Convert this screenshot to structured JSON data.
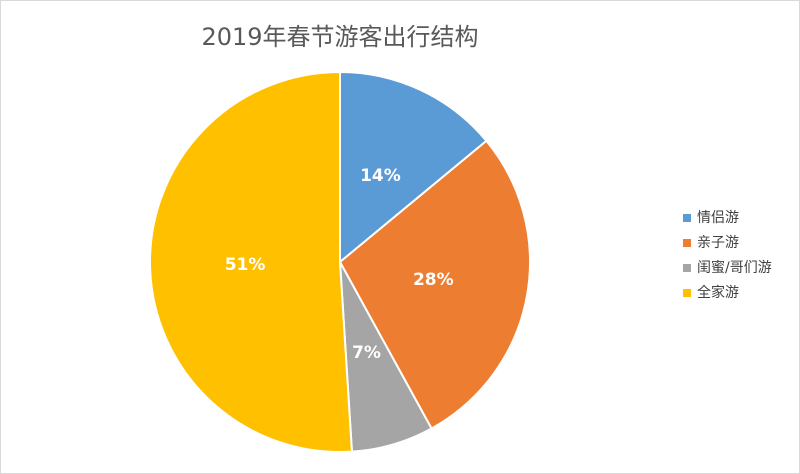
{
  "chart_data": {
    "type": "pie",
    "title": "2019年春节游客出行结构",
    "categories": [
      "情侣游",
      "亲子游",
      "闺蜜/哥们游",
      "全家游"
    ],
    "values": [
      14,
      28,
      7,
      51
    ],
    "value_labels": [
      "14%",
      "28%",
      "7%",
      "51%"
    ],
    "colors": [
      "#5b9bd5",
      "#ed7d31",
      "#a5a5a5",
      "#ffc000"
    ],
    "legend": "right"
  }
}
